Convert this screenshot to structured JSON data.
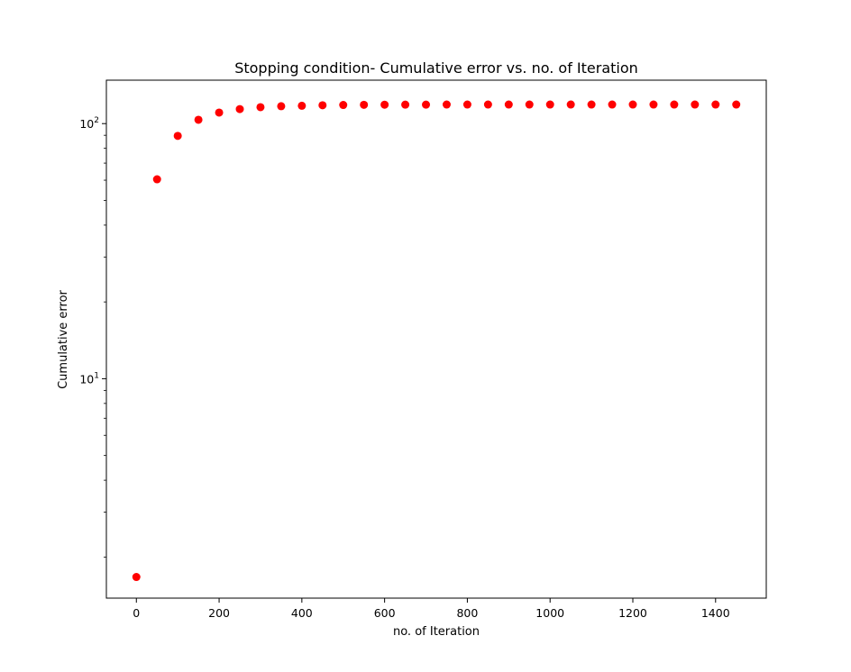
{
  "chart_data": {
    "type": "scatter",
    "title": "Stopping condition- Cumulative error vs. no. of Iteration",
    "xlabel": "no. of Iteration",
    "ylabel": "Cumulative error",
    "yscale": "log",
    "xlim": [
      -72.5,
      1522.5
    ],
    "ylim": [
      1.38,
      148
    ],
    "x_ticks": [
      0,
      200,
      400,
      600,
      800,
      1000,
      1200,
      1400
    ],
    "y_major_ticks": [
      {
        "value": 10,
        "base": "10",
        "exp": "1"
      },
      {
        "value": 100,
        "base": "10",
        "exp": "2"
      }
    ],
    "y_minor_ticks": [
      2,
      3,
      4,
      5,
      6,
      7,
      8,
      9,
      20,
      30,
      40,
      50,
      60,
      70,
      80,
      90
    ],
    "grid": false,
    "legend": "none",
    "series": [
      {
        "color": "#ff0000",
        "marker": "circle",
        "x": [
          0,
          50,
          100,
          150,
          200,
          250,
          300,
          350,
          400,
          450,
          500,
          550,
          600,
          650,
          700,
          750,
          800,
          850,
          900,
          950,
          1000,
          1050,
          1100,
          1150,
          1200,
          1250,
          1300,
          1350,
          1400,
          1450
        ],
        "y": [
          1.67,
          60.5,
          89.5,
          103.5,
          110.5,
          114,
          116,
          117,
          117.5,
          118,
          118.3,
          118.5,
          118.6,
          118.7,
          118.7,
          118.8,
          118.8,
          118.8,
          118.8,
          118.8,
          118.8,
          118.8,
          118.8,
          118.8,
          118.8,
          118.8,
          118.8,
          118.8,
          118.8,
          118.8
        ]
      }
    ]
  }
}
